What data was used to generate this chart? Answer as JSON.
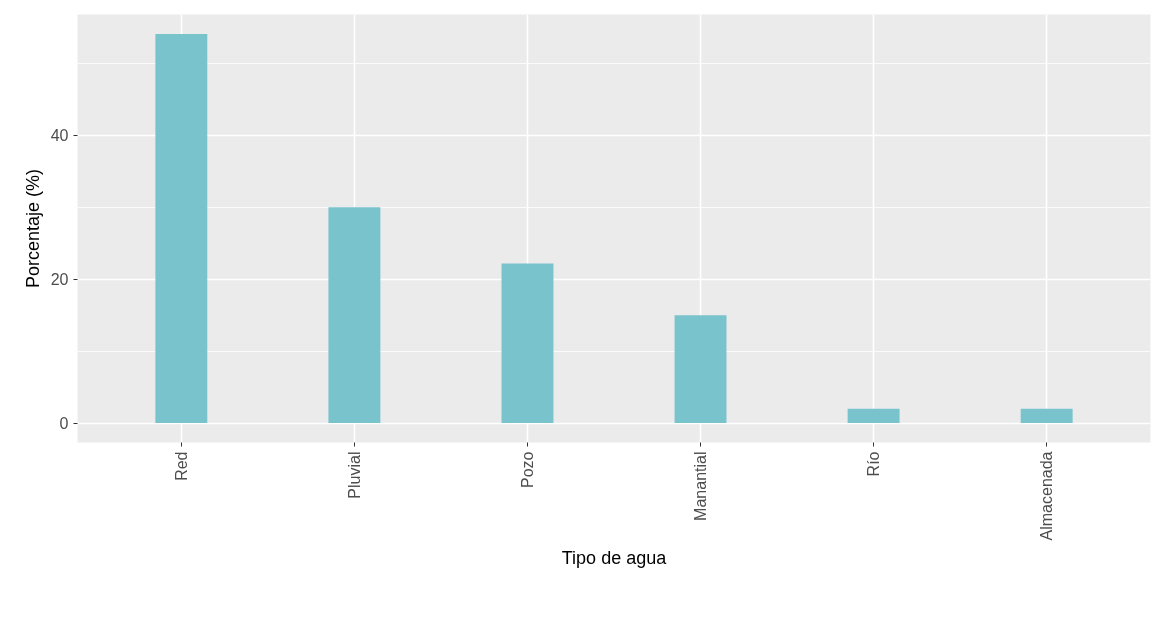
{
  "chart_data": {
    "type": "bar",
    "xlabel": "Tipo de agua",
    "ylabel": "Porcentaje (%)",
    "categories": [
      "Red",
      "Pluvial",
      "Pozo",
      "Manantial",
      "Río",
      "Almacenada"
    ],
    "values": [
      54.1,
      30,
      22.2,
      15,
      2,
      2
    ],
    "color": "#79c3cd",
    "ylim": [
      -2.7,
      56.8
    ],
    "yticks": [
      0,
      20,
      40
    ],
    "grid": true
  }
}
